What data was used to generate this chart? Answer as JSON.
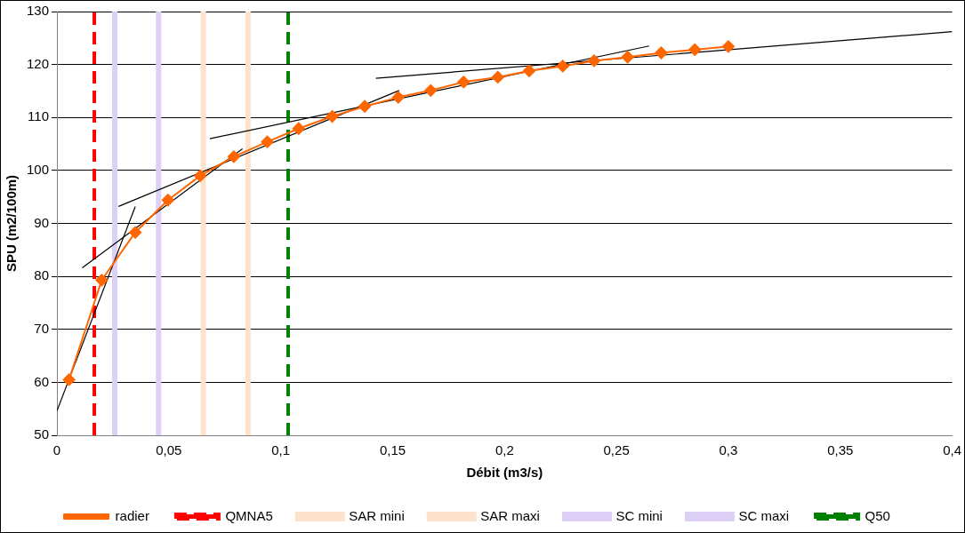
{
  "chart_data": {
    "type": "line",
    "xlabel": "Débit (m3/s)",
    "ylabel": "SPU (m2/100m)",
    "xlim": [
      0,
      0.4
    ],
    "ylim": [
      50,
      130
    ],
    "xticks": [
      0,
      {
        "value": 0.05,
        "label": "0,05"
      },
      {
        "value": 0.1,
        "label": "0,1"
      },
      {
        "value": 0.15,
        "label": "0,15"
      },
      {
        "value": 0.2,
        "label": "0,2"
      },
      {
        "value": 0.25,
        "label": "0,25"
      },
      {
        "value": 0.3,
        "label": "0,3"
      },
      {
        "value": 0.35,
        "label": "0,35"
      },
      {
        "value": 0.4,
        "label": "0,4"
      }
    ],
    "yticks": [
      50,
      60,
      70,
      80,
      90,
      100,
      110,
      120,
      130
    ],
    "grid": "y",
    "legend": "bottom",
    "series": [
      {
        "name": "radier",
        "color": "#ff6600",
        "marker": "diamond",
        "x": [
          0.0054,
          0.02,
          0.035,
          0.0496,
          0.064,
          0.079,
          0.094,
          0.108,
          0.123,
          0.1375,
          0.1525,
          0.167,
          0.1817,
          0.197,
          0.211,
          0.226,
          0.24,
          0.255,
          0.27,
          0.285,
          0.3
        ],
        "values": [
          60.5,
          79.3,
          88.3,
          94.4,
          99,
          102.6,
          105.4,
          107.9,
          110.2,
          112.1,
          113.8,
          115.1,
          116.7,
          117.6,
          118.8,
          119.7,
          120.7,
          121.4,
          122.2,
          122.8,
          123.4
        ]
      },
      {
        "color": "#000000",
        "marker": "none",
        "x": [
          0,
          0.035
        ],
        "values": [
          54.6,
          93.2
        ]
      },
      {
        "color": "#000000",
        "marker": "none",
        "x": [
          0.0113,
          0.0829
        ],
        "values": [
          81.6,
          104.1
        ]
      },
      {
        "color": "#000000",
        "marker": "none",
        "x": [
          0.0275,
          0.1529
        ],
        "values": [
          93.2,
          115.1
        ]
      },
      {
        "color": "#000000",
        "marker": "none",
        "x": [
          0.0683,
          0.2646
        ],
        "values": [
          106,
          123.5
        ]
      },
      {
        "color": "#000000",
        "marker": "none",
        "x": [
          0.1425,
          0.4
        ],
        "values": [
          117.4,
          126.2
        ]
      }
    ],
    "ref_lines": [
      {
        "axis": "x",
        "value": 0.0167,
        "label": "QMNA5",
        "color": "#ff0000",
        "line_style": "dashed"
      },
      {
        "axis": "x",
        "value": 0.0654,
        "label": "SAR mini",
        "color": "#fde3cc",
        "line_style": "solid"
      },
      {
        "axis": "x",
        "value": 0.0854,
        "label": "SAR maxi",
        "color": "#fde3cc",
        "line_style": "solid"
      },
      {
        "axis": "x",
        "value": 0.0258,
        "label": "SC mini",
        "color": "#ddd0f7",
        "line_style": "solid"
      },
      {
        "axis": "x",
        "value": 0.0454,
        "label": "SC maxi",
        "color": "#ddd0f7",
        "line_style": "solid"
      },
      {
        "axis": "x",
        "value": 0.1033,
        "label": "Q50",
        "color": "#008000",
        "line_style": "dashed"
      }
    ]
  }
}
